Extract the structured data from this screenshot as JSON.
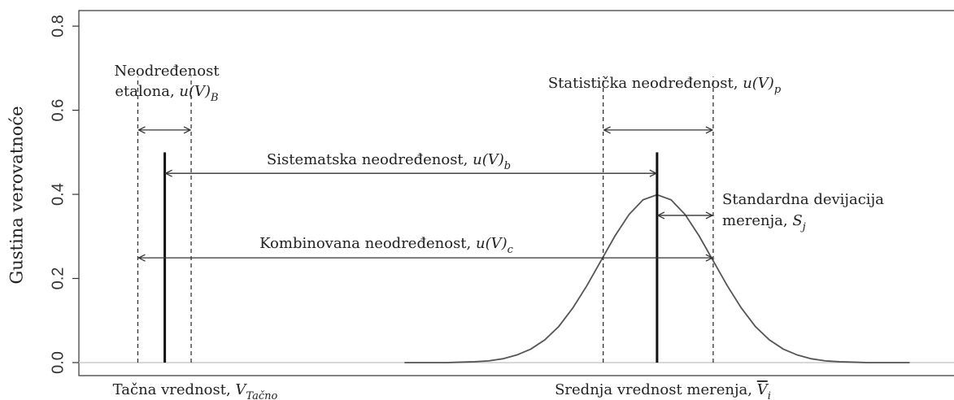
{
  "chart_data": {
    "type": "line",
    "ylabel": "Gustina verovatnoće",
    "ylim": [
      -0.031,
      0.837
    ],
    "yticks": [
      {
        "value": 0,
        "label": "0.0"
      },
      0.2,
      0.4,
      0.6,
      0.8
    ],
    "xlim": [
      -10.3,
      5.29
    ],
    "series": [
      {
        "color": "#555555",
        "x": [
          -4.5,
          -4.25,
          -4,
          -3.75,
          -3.5,
          -3.25,
          -3,
          -2.75,
          -2.5,
          -2.25,
          -2,
          -1.75,
          -1.5,
          -1.25,
          -1,
          -0.75,
          -0.5,
          -0.25,
          0,
          0.25,
          0.5,
          0.75,
          1,
          1.25,
          1.5,
          1.75,
          2,
          2.25,
          2.5,
          2.75,
          3,
          3.25,
          3.5,
          3.75,
          4,
          4.25,
          4.5
        ],
        "values": [
          0,
          0,
          0,
          0,
          0.001,
          0.002,
          0.004,
          0.009,
          0.018,
          0.032,
          0.054,
          0.086,
          0.13,
          0.183,
          0.242,
          0.301,
          0.352,
          0.387,
          0.399,
          0.387,
          0.352,
          0.301,
          0.242,
          0.183,
          0.13,
          0.086,
          0.054,
          0.032,
          0.018,
          0.009,
          0.004,
          0.002,
          0.001,
          0,
          0,
          0,
          0
        ]
      }
    ],
    "vlines": [
      {
        "x": -8.77,
        "y": 0.5,
        "style": "solid"
      },
      {
        "x": 0,
        "y": 0.5,
        "style": "solid"
      },
      {
        "x": -9.25,
        "y": 0.68,
        "style": "dashed"
      },
      {
        "x": -8.3,
        "y": 0.68,
        "style": "dashed"
      },
      {
        "x": -0.96,
        "y": 0.68,
        "style": "dashed"
      },
      {
        "x": 1,
        "y": 0.68,
        "style": "dashed"
      }
    ],
    "annotations": [
      {
        "lines": [
          [
            {
              "text": "Neodređenost"
            }
          ],
          [
            {
              "text": "etalona, "
            },
            {
              "text": "u(V)",
              "italic": true
            },
            {
              "text": "B",
              "italic": true,
              "sub": true
            }
          ]
        ],
        "arrow": {
          "x": [
            -9.25,
            -8.3
          ],
          "y": 0.553
        }
      },
      {
        "lines": [
          [
            {
              "text": "Statistička neodređenost, "
            },
            {
              "text": "u(V)",
              "italic": true
            },
            {
              "text": "p",
              "italic": true,
              "sub": true
            }
          ]
        ],
        "arrow": {
          "x": [
            -0.96,
            1
          ],
          "y": 0.553
        }
      },
      {
        "lines": [
          [
            {
              "text": "Sistematska neodređenost, "
            },
            {
              "text": "u(V)",
              "italic": true
            },
            {
              "text": "b",
              "italic": true,
              "sub": true
            }
          ]
        ],
        "arrow": {
          "x": [
            -8.77,
            0
          ],
          "y": 0.45
        }
      },
      {
        "lines": [
          [
            {
              "text": "Standardna devijacija"
            }
          ],
          [
            {
              "text": "merenja, "
            },
            {
              "text": "S",
              "italic": true
            },
            {
              "text": "j",
              "italic": true,
              "sub": true
            }
          ]
        ],
        "arrow": {
          "x": [
            0,
            1
          ],
          "y": 0.35
        }
      },
      {
        "lines": [
          [
            {
              "text": "Kombinovana neodređenost, "
            },
            {
              "text": "u(V)",
              "italic": true
            },
            {
              "text": "c",
              "italic": true,
              "sub": true
            }
          ]
        ],
        "arrow": {
          "x": [
            -9.25,
            1
          ],
          "y": 0.249
        }
      }
    ],
    "x_labels": [
      [
        {
          "text": "Tačna vrednost, "
        },
        {
          "text": "V",
          "italic": true
        },
        {
          "text": "Tačno",
          "italic": true,
          "sub": true
        }
      ],
      [
        {
          "text": "Srednja vrednost merenja, "
        },
        {
          "text": "V",
          "italic": true,
          "overline": true
        },
        {
          "text": "i",
          "italic": true,
          "sub": true
        }
      ]
    ]
  }
}
